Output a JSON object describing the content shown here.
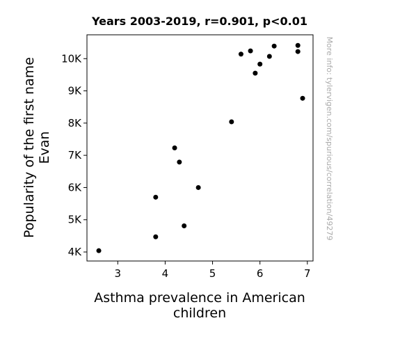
{
  "chart_data": {
    "type": "scatter",
    "title": "Years 2003-2019, r=0.901, p<0.01",
    "xlabel": [
      "Asthma prevalence in American",
      "children"
    ],
    "ylabel": [
      "Popularity of the first name",
      "Evan"
    ],
    "xlim": [
      2.35,
      7.12
    ],
    "ylim": [
      3720,
      10740
    ],
    "xticks": [
      3,
      4,
      5,
      6,
      7
    ],
    "xtick_labels": [
      "3",
      "4",
      "5",
      "6",
      "7"
    ],
    "yticks": [
      4000,
      5000,
      6000,
      7000,
      8000,
      9000,
      10000
    ],
    "ytick_labels": [
      "4K",
      "5K",
      "6K",
      "7K",
      "8K",
      "9K",
      "10K"
    ],
    "grid": false,
    "marker_color": "#000000",
    "points": [
      {
        "x": 2.6,
        "y": 4040
      },
      {
        "x": 3.8,
        "y": 4470
      },
      {
        "x": 3.8,
        "y": 5700
      },
      {
        "x": 4.2,
        "y": 7230
      },
      {
        "x": 4.3,
        "y": 6790
      },
      {
        "x": 4.4,
        "y": 4810
      },
      {
        "x": 4.7,
        "y": 6000
      },
      {
        "x": 5.4,
        "y": 8040
      },
      {
        "x": 5.6,
        "y": 10140
      },
      {
        "x": 5.8,
        "y": 10240
      },
      {
        "x": 5.9,
        "y": 9550
      },
      {
        "x": 6.0,
        "y": 9830
      },
      {
        "x": 6.2,
        "y": 10070
      },
      {
        "x": 6.3,
        "y": 10390
      },
      {
        "x": 6.8,
        "y": 10410
      },
      {
        "x": 6.8,
        "y": 10220
      },
      {
        "x": 6.9,
        "y": 8770
      }
    ]
  },
  "credit": "More info: tylervigen.com/spurious/correlation/49279"
}
